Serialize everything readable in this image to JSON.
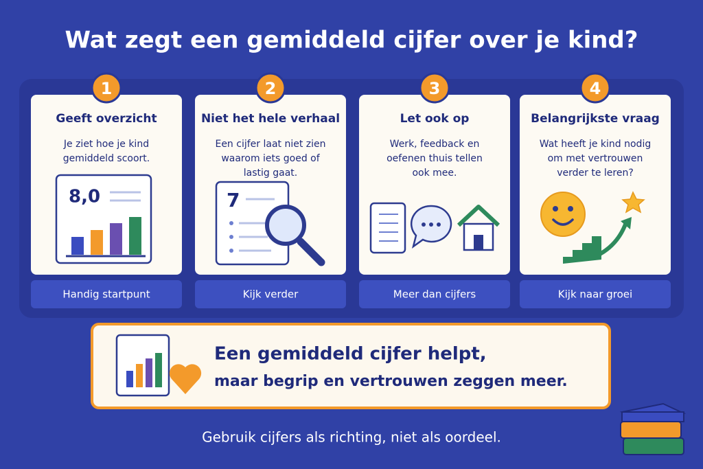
{
  "title": "Wat zegt een gemiddeld cijfer over je kind?",
  "cards": [
    {
      "number": "1",
      "title": "Geeft overzicht",
      "text": [
        "Je ziet hoe je kind",
        "gemiddeld scoort."
      ],
      "icon_text": "8,0",
      "button": "Handig startpunt"
    },
    {
      "number": "2",
      "title": "Niet het hele verhaal",
      "text": [
        "Een cijfer laat niet zien",
        "waarom iets goed of",
        "lastig gaat."
      ],
      "icon_text": "7",
      "button": "Kijk verder"
    },
    {
      "number": "3",
      "title": "Let ook op",
      "text": [
        "Werk, feedback en",
        "oefenen thuis tellen",
        "ook mee."
      ],
      "button": "Meer dan cijfers"
    },
    {
      "number": "4",
      "title": "Belangrijkste vraag",
      "text": [
        "Wat heeft je kind nodig",
        "om met vertrouwen",
        "verder te leren?"
      ],
      "button": "Kijk naar groei"
    }
  ],
  "banner": [
    "Een gemiddeld cijfer helpt,",
    "maar begrip en vertrouwen zeggen meer."
  ],
  "footer": "Gebruik cijfers als richting, niet als oordeel."
}
